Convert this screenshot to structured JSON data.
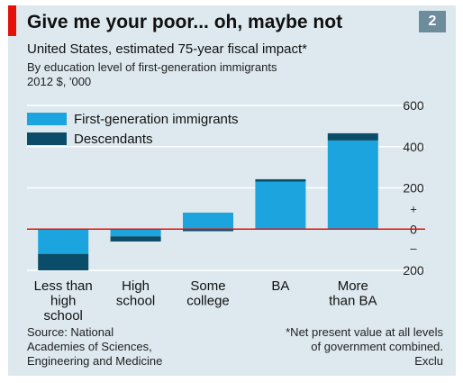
{
  "chart_data": {
    "type": "bar",
    "title": "Give me your poor... oh, maybe not",
    "badge": "2",
    "subtitle": "United States, estimated 75-year fiscal impact*",
    "subtitle2_lines": [
      "By education level of first-generation immigrants",
      "2012 $, '000"
    ],
    "categories": [
      [
        "Less than",
        "high",
        "school"
      ],
      [
        "High",
        "school"
      ],
      [
        "Some",
        "college"
      ],
      [
        "BA"
      ],
      [
        "More",
        "than BA"
      ]
    ],
    "series": [
      {
        "name": "First-generation immigrants",
        "color": "#1ba4dd",
        "values": [
          -120,
          -35,
          80,
          230,
          430
        ]
      },
      {
        "name": "Descendants",
        "color": "#0b4d68",
        "values": [
          -80,
          -25,
          -10,
          12,
          35
        ]
      }
    ],
    "ylim": [
      -200,
      600
    ],
    "yticks": [
      600,
      400,
      200,
      0,
      -200
    ],
    "ytick_labels": [
      "600",
      "400",
      "200",
      "0",
      "200"
    ],
    "sign_labels": [
      "+",
      "–"
    ],
    "grid": true,
    "legend_placement": "top-left",
    "zero_line_color": "#e3120b",
    "source_lines": [
      "Source: National",
      "Academies of Sciences,",
      "Engineering and Medicine"
    ],
    "note_lines": [
      "*Net present value at all levels",
      "of government combined.",
      "Exclu"
    ]
  }
}
